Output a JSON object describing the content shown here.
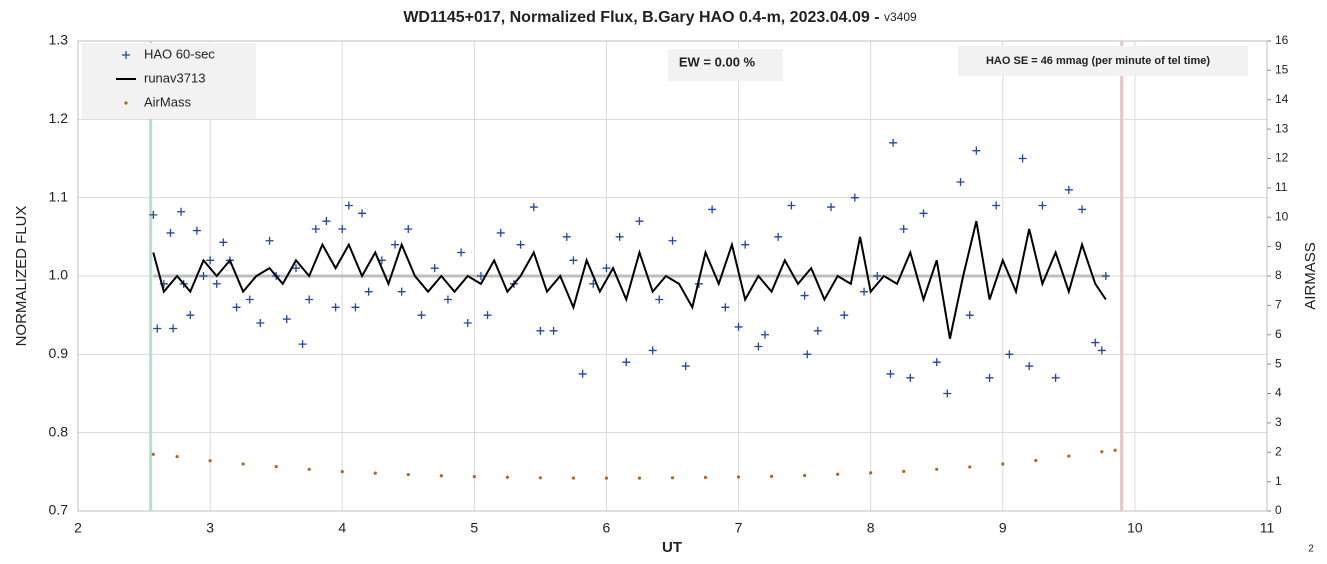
{
  "chart_data": {
    "type": "scatter",
    "title": "WD1145+017, Normalized Flux, B.Gary HAO 0.4-m, 2023.04.09 - ",
    "title_suffix": "v3409",
    "x_label": "UT",
    "y_label": "NORMALIZED FLUX",
    "y2_label": "AIRMASS",
    "annotations": [
      "EW = 0.00 %",
      "HAO SE =  46 mmag (per minute of tel time)"
    ],
    "page_number": "2",
    "xlim": [
      2,
      11
    ],
    "xticks": [
      2,
      3,
      4,
      5,
      6,
      7,
      8,
      9,
      10,
      11
    ],
    "ylim": [
      0.7,
      1.3
    ],
    "yticks": [
      0.7,
      0.8,
      0.9,
      {
        "value": 1.0,
        "label": "1.0"
      },
      1.1,
      1.2,
      1.3
    ],
    "y2lim": [
      0,
      16
    ],
    "y2ticks": [
      0,
      1,
      2,
      3,
      4,
      5,
      6,
      7,
      8,
      9,
      10,
      11,
      12,
      13,
      14,
      15,
      16
    ],
    "grid": true,
    "legend": "upper left",
    "vlines": [
      {
        "x": 2.55,
        "color": "#b7e0c8"
      },
      {
        "x": 9.9,
        "color": "#e8c4c4"
      }
    ],
    "reference_line": {
      "y": 1.0,
      "x": [
        2.57,
        9.8
      ],
      "color": "#bfbfbf"
    },
    "series": [
      {
        "name": "HAO 60-sec",
        "kind": "scatter",
        "color": "#2446a8",
        "x": [
          2.57,
          2.6,
          2.65,
          2.7,
          2.72,
          2.78,
          2.8,
          2.85,
          2.9,
          2.95,
          3.0,
          3.05,
          3.1,
          3.15,
          3.2,
          3.3,
          3.38,
          3.45,
          3.5,
          3.58,
          3.65,
          3.7,
          3.75,
          3.8,
          3.88,
          3.95,
          4.0,
          4.05,
          4.1,
          4.15,
          4.2,
          4.3,
          4.4,
          4.45,
          4.5,
          4.6,
          4.7,
          4.8,
          4.9,
          4.95,
          5.05,
          5.1,
          5.2,
          5.3,
          5.35,
          5.45,
          5.5,
          5.6,
          5.7,
          5.75,
          5.82,
          5.9,
          6.0,
          6.1,
          6.15,
          6.25,
          6.35,
          6.4,
          6.5,
          6.6,
          6.7,
          6.8,
          6.9,
          7.0,
          7.05,
          7.15,
          7.2,
          7.3,
          7.4,
          7.5,
          7.52,
          7.6,
          7.7,
          7.8,
          7.88,
          7.95,
          8.05,
          8.15,
          8.17,
          8.25,
          8.3,
          8.4,
          8.5,
          8.58,
          8.68,
          8.75,
          8.8,
          8.9,
          8.95,
          9.05,
          9.15,
          9.2,
          9.3,
          9.4,
          9.5,
          9.6,
          9.7,
          9.75,
          9.78
        ],
        "values": [
          1.078,
          0.933,
          0.99,
          1.055,
          0.933,
          1.082,
          0.99,
          0.95,
          1.058,
          1.0,
          1.02,
          0.99,
          1.043,
          1.02,
          0.96,
          0.97,
          0.94,
          1.045,
          1.0,
          0.945,
          1.01,
          0.913,
          0.97,
          1.06,
          1.07,
          0.96,
          1.06,
          1.09,
          0.96,
          1.08,
          0.98,
          1.02,
          1.04,
          0.98,
          1.06,
          0.95,
          1.01,
          0.97,
          1.03,
          0.94,
          1.0,
          0.95,
          1.055,
          0.99,
          1.04,
          1.088,
          0.93,
          0.93,
          1.05,
          1.02,
          0.875,
          0.99,
          1.01,
          1.05,
          0.89,
          1.07,
          0.905,
          0.97,
          1.045,
          0.885,
          0.99,
          1.085,
          0.96,
          0.935,
          1.04,
          0.91,
          0.925,
          1.05,
          1.09,
          0.975,
          0.9,
          0.93,
          1.088,
          0.95,
          1.1,
          0.98,
          1.0,
          0.875,
          1.17,
          1.06,
          0.87,
          1.08,
          0.89,
          0.85,
          1.12,
          0.95,
          1.16,
          0.87,
          1.09,
          0.9,
          1.15,
          0.885,
          1.09,
          0.87,
          1.11,
          1.085,
          0.915,
          0.905,
          1.0
        ]
      },
      {
        "name": "runav3713",
        "kind": "line",
        "color": "#000000",
        "x": [
          2.57,
          2.65,
          2.75,
          2.85,
          2.95,
          3.05,
          3.15,
          3.25,
          3.35,
          3.45,
          3.55,
          3.65,
          3.75,
          3.85,
          3.95,
          4.05,
          4.15,
          4.25,
          4.35,
          4.45,
          4.55,
          4.65,
          4.75,
          4.85,
          4.95,
          5.05,
          5.15,
          5.25,
          5.35,
          5.45,
          5.55,
          5.65,
          5.75,
          5.85,
          5.95,
          6.05,
          6.15,
          6.25,
          6.35,
          6.45,
          6.55,
          6.65,
          6.75,
          6.85,
          6.95,
          7.05,
          7.15,
          7.25,
          7.35,
          7.45,
          7.55,
          7.65,
          7.75,
          7.85,
          7.92,
          8.0,
          8.1,
          8.2,
          8.3,
          8.4,
          8.5,
          8.6,
          8.7,
          8.8,
          8.9,
          9.0,
          9.1,
          9.2,
          9.3,
          9.4,
          9.5,
          9.6,
          9.7,
          9.78
        ],
        "values": [
          1.03,
          0.98,
          1.0,
          0.98,
          1.02,
          1.0,
          1.02,
          0.98,
          1.0,
          1.01,
          0.99,
          1.02,
          1.0,
          1.04,
          1.01,
          1.04,
          1.0,
          1.03,
          0.99,
          1.04,
          1.0,
          0.98,
          1.0,
          0.98,
          1.0,
          0.99,
          1.02,
          0.98,
          1.0,
          1.03,
          0.98,
          1.0,
          0.96,
          1.02,
          0.98,
          1.01,
          0.97,
          1.03,
          0.98,
          1.0,
          0.99,
          0.96,
          1.03,
          0.99,
          1.04,
          0.97,
          1.0,
          0.98,
          1.02,
          0.99,
          1.01,
          0.97,
          1.0,
          0.99,
          1.05,
          0.98,
          1.0,
          0.99,
          1.03,
          0.97,
          1.02,
          0.92,
          1.0,
          1.07,
          0.97,
          1.02,
          0.98,
          1.06,
          0.99,
          1.03,
          0.98,
          1.04,
          0.99,
          0.97
        ]
      },
      {
        "name": "AirMass",
        "kind": "dots",
        "axis": "y2",
        "color": "#b5651d",
        "x": [
          2.57,
          2.75,
          3.0,
          3.25,
          3.5,
          3.75,
          4.0,
          4.25,
          4.5,
          4.75,
          5.0,
          5.25,
          5.5,
          5.75,
          6.0,
          6.25,
          6.5,
          6.75,
          7.0,
          7.25,
          7.5,
          7.75,
          8.0,
          8.25,
          8.5,
          8.75,
          9.0,
          9.25,
          9.5,
          9.75,
          9.85
        ],
        "values": [
          1.93,
          1.85,
          1.71,
          1.6,
          1.51,
          1.42,
          1.34,
          1.29,
          1.24,
          1.2,
          1.17,
          1.15,
          1.13,
          1.12,
          1.12,
          1.12,
          1.13,
          1.14,
          1.16,
          1.18,
          1.21,
          1.25,
          1.3,
          1.35,
          1.42,
          1.5,
          1.6,
          1.72,
          1.87,
          2.02,
          2.07
        ]
      }
    ]
  }
}
